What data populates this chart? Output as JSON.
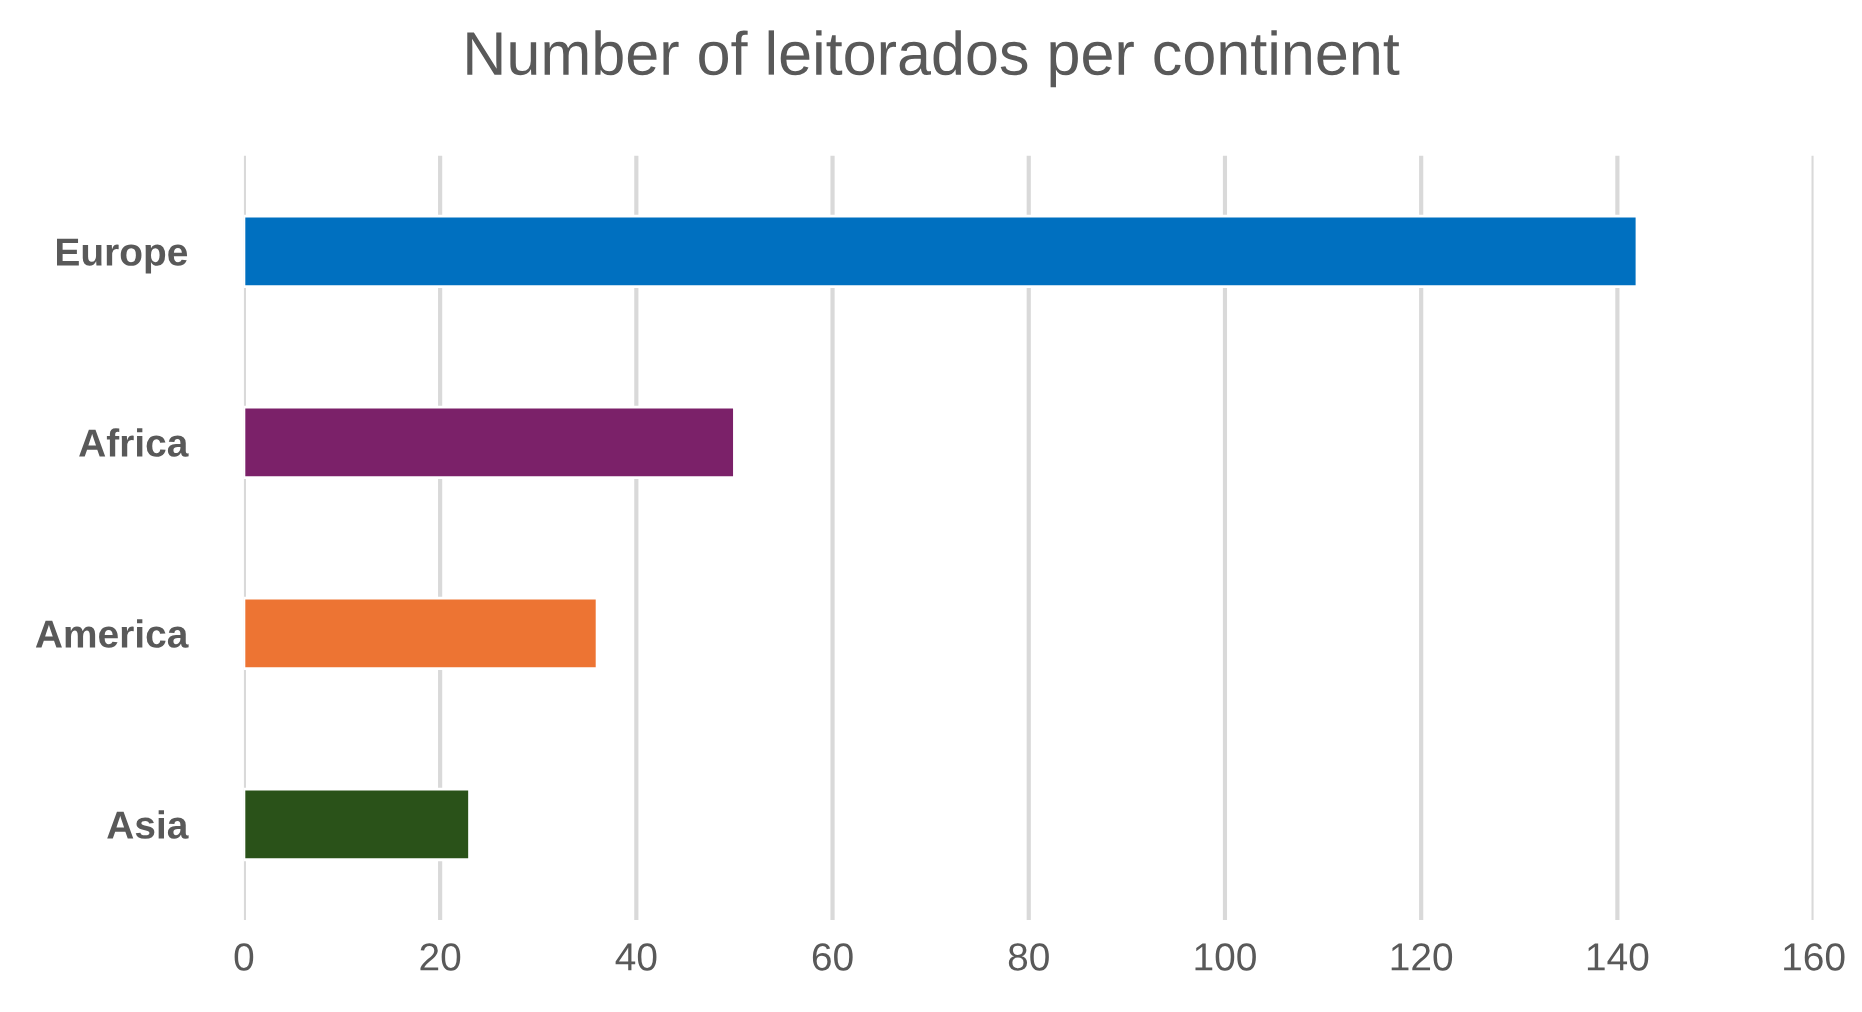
{
  "chart_data": {
    "type": "bar",
    "orientation": "horizontal",
    "title": "Number of leitorados per continent",
    "categories": [
      "Europe",
      "Africa",
      "America",
      "Asia"
    ],
    "values": [
      142,
      50,
      36,
      23
    ],
    "colors": [
      "#0070c0",
      "#7b2169",
      "#ed7433",
      "#2a5219"
    ],
    "xlim": [
      0,
      160
    ],
    "xticks": [
      0,
      20,
      40,
      60,
      80,
      100,
      120,
      140,
      160
    ],
    "grid": "x",
    "legend": false
  }
}
